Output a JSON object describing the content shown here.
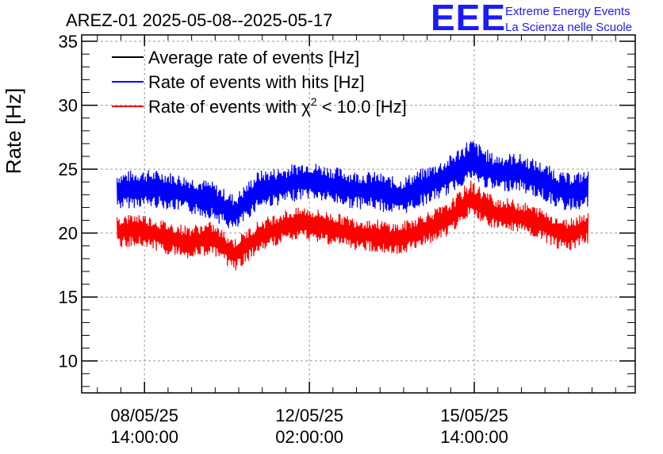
{
  "chart_data": {
    "type": "line",
    "title": "AREZ-01 2025-05-08--2025-05-17",
    "ylabel": "Rate [Hz]",
    "xlabel": "",
    "ylim": [
      7.5,
      35.5
    ],
    "yticks": [
      10,
      15,
      20,
      25,
      30,
      35
    ],
    "xticks": [
      {
        "date": "08/05/25",
        "time": "14:00:00",
        "t": "2025-05-08T14:00:00"
      },
      {
        "date": "12/05/25",
        "time": "02:00:00",
        "t": "2025-05-12T02:00:00"
      },
      {
        "date": "15/05/25",
        "time": "14:00:00",
        "t": "2025-05-15T14:00:00"
      }
    ],
    "xlim": [
      "2025-05-07T06:00:00",
      "2025-05-19T00:00:00"
    ],
    "grid": true,
    "legend_position": "top-left",
    "series": [
      {
        "name": "Average rate of events [Hz]",
        "color": "#000000",
        "x": [],
        "values": []
      },
      {
        "name": "Rate of events with hits [Hz]",
        "color": "#0000ff",
        "x": [
          "2025-05-08T00:00",
          "2025-05-08T12:00",
          "2025-05-09T00:00",
          "2025-05-09T12:00",
          "2025-05-10T00:00",
          "2025-05-10T12:00",
          "2025-05-11T00:00",
          "2025-05-11T12:00",
          "2025-05-12T00:00",
          "2025-05-12T12:00",
          "2025-05-13T00:00",
          "2025-05-13T12:00",
          "2025-05-14T00:00",
          "2025-05-14T12:00",
          "2025-05-15T00:00",
          "2025-05-15T12:00",
          "2025-05-16T00:00",
          "2025-05-16T12:00",
          "2025-05-17T00:00",
          "2025-05-17T12:00",
          "2025-05-18T00:00"
        ],
        "values": [
          23.3,
          23.5,
          23.4,
          23.0,
          22.6,
          21.5,
          23.4,
          23.7,
          24.2,
          23.8,
          23.4,
          23.3,
          22.8,
          23.6,
          24.4,
          25.6,
          24.7,
          24.8,
          24.1,
          23.2,
          23.4
        ],
        "band_low": [
          21.8,
          22.0,
          21.9,
          21.5,
          21.1,
          20.0,
          21.9,
          22.2,
          22.7,
          22.3,
          21.9,
          21.8,
          21.3,
          22.1,
          22.9,
          24.1,
          23.2,
          23.3,
          22.6,
          21.7,
          21.9
        ],
        "band_high": [
          24.8,
          25.0,
          24.9,
          24.5,
          24.1,
          23.0,
          24.9,
          25.2,
          25.7,
          25.3,
          24.9,
          24.8,
          24.3,
          25.1,
          25.9,
          27.5,
          26.2,
          26.3,
          25.6,
          24.7,
          24.9
        ]
      },
      {
        "name": "Rate of events with χ² < 10.0 [Hz]",
        "name_main": "Rate of events with ",
        "name_symbol": "χ",
        "name_sup": "2",
        "name_rest": " < 10.0 [Hz]",
        "color": "#ff0000",
        "x": [
          "2025-05-08T00:00",
          "2025-05-08T12:00",
          "2025-05-09T00:00",
          "2025-05-09T12:00",
          "2025-05-10T00:00",
          "2025-05-10T12:00",
          "2025-05-11T00:00",
          "2025-05-11T12:00",
          "2025-05-12T00:00",
          "2025-05-12T12:00",
          "2025-05-13T00:00",
          "2025-05-13T12:00",
          "2025-05-14T00:00",
          "2025-05-14T12:00",
          "2025-05-15T00:00",
          "2025-05-15T12:00",
          "2025-05-16T00:00",
          "2025-05-16T12:00",
          "2025-05-17T00:00",
          "2025-05-17T12:00",
          "2025-05-18T00:00"
        ],
        "values": [
          20.1,
          20.3,
          19.7,
          19.3,
          19.6,
          18.3,
          19.7,
          20.5,
          20.8,
          20.4,
          20.0,
          19.8,
          19.5,
          20.3,
          21.0,
          22.6,
          21.6,
          21.3,
          20.7,
          19.8,
          20.5
        ],
        "band_low": [
          18.8,
          19.0,
          18.4,
          18.0,
          18.3,
          17.0,
          18.4,
          19.2,
          19.5,
          19.1,
          18.7,
          18.5,
          18.2,
          19.0,
          19.7,
          21.3,
          20.3,
          20.0,
          19.4,
          18.5,
          19.2
        ],
        "band_high": [
          21.4,
          21.6,
          21.0,
          20.6,
          20.9,
          19.6,
          21.0,
          21.8,
          22.1,
          21.7,
          21.3,
          21.1,
          20.8,
          21.6,
          22.3,
          24.2,
          22.9,
          22.6,
          22.0,
          21.1,
          21.8
        ]
      }
    ]
  },
  "logo": {
    "letters": "EEE",
    "line1": "Extreme Energy Events",
    "line2": "La Scienza nelle Scuole"
  }
}
